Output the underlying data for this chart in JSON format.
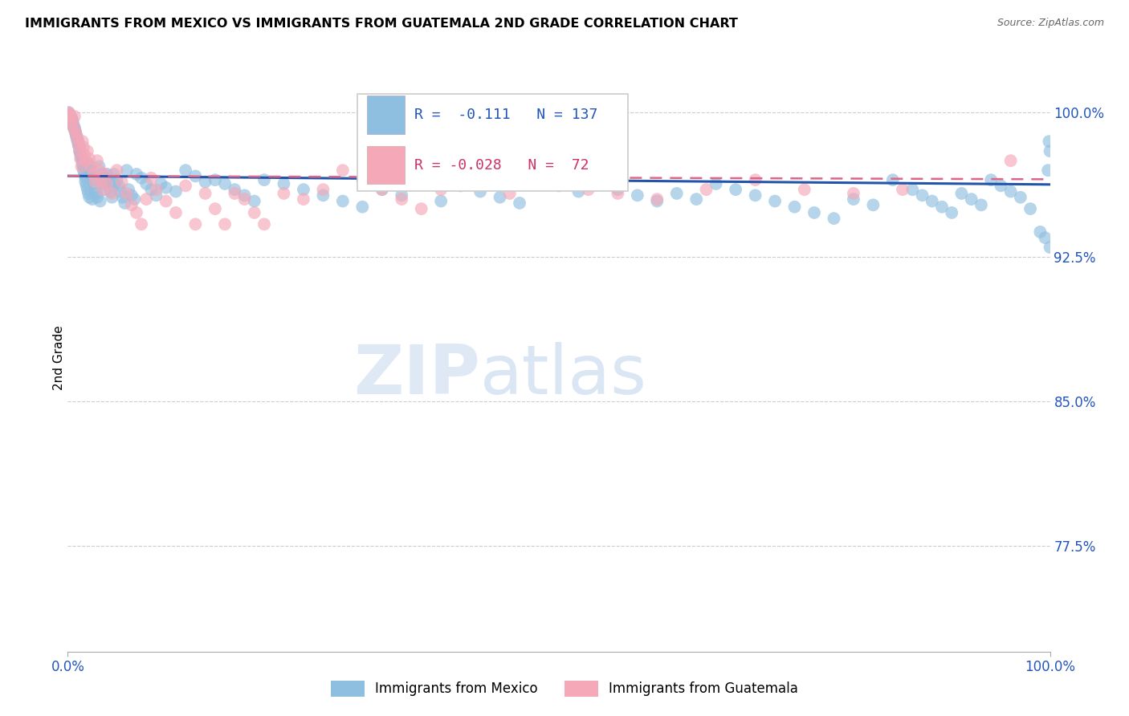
{
  "title": "IMMIGRANTS FROM MEXICO VS IMMIGRANTS FROM GUATEMALA 2ND GRADE CORRELATION CHART",
  "source": "Source: ZipAtlas.com",
  "ylabel": "2nd Grade",
  "y_tick_labels_right": [
    "100.0%",
    "92.5%",
    "85.0%",
    "77.5%"
  ],
  "y_tick_positions_right": [
    1.0,
    0.925,
    0.85,
    0.775
  ],
  "xlim": [
    0.0,
    1.0
  ],
  "ylim": [
    0.72,
    1.025
  ],
  "legend_r_blue": "-0.111",
  "legend_n_blue": "137",
  "legend_r_pink": "-0.028",
  "legend_n_pink": "72",
  "blue_color": "#8fbfe0",
  "pink_color": "#f4a8b8",
  "trendline_blue": "#2255aa",
  "trendline_pink": "#dd6688",
  "watermark_zip": "ZIP",
  "watermark_atlas": "atlas",
  "blue_scatter_x": [
    0.001,
    0.002,
    0.003,
    0.003,
    0.004,
    0.004,
    0.005,
    0.005,
    0.005,
    0.006,
    0.006,
    0.007,
    0.007,
    0.008,
    0.008,
    0.009,
    0.009,
    0.01,
    0.01,
    0.011,
    0.011,
    0.012,
    0.012,
    0.013,
    0.013,
    0.014,
    0.015,
    0.015,
    0.016,
    0.016,
    0.017,
    0.018,
    0.018,
    0.019,
    0.02,
    0.02,
    0.021,
    0.022,
    0.022,
    0.023,
    0.024,
    0.025,
    0.026,
    0.027,
    0.028,
    0.029,
    0.03,
    0.032,
    0.033,
    0.035,
    0.036,
    0.037,
    0.038,
    0.04,
    0.041,
    0.043,
    0.044,
    0.045,
    0.047,
    0.048,
    0.05,
    0.052,
    0.054,
    0.056,
    0.058,
    0.06,
    0.062,
    0.065,
    0.068,
    0.07,
    0.075,
    0.08,
    0.085,
    0.09,
    0.095,
    0.1,
    0.11,
    0.12,
    0.13,
    0.14,
    0.15,
    0.16,
    0.17,
    0.18,
    0.19,
    0.2,
    0.22,
    0.24,
    0.26,
    0.28,
    0.3,
    0.32,
    0.34,
    0.36,
    0.38,
    0.4,
    0.42,
    0.44,
    0.46,
    0.48,
    0.5,
    0.52,
    0.54,
    0.56,
    0.58,
    0.6,
    0.62,
    0.64,
    0.66,
    0.68,
    0.7,
    0.72,
    0.74,
    0.76,
    0.78,
    0.8,
    0.82,
    0.84,
    0.86,
    0.87,
    0.88,
    0.89,
    0.9,
    0.91,
    0.92,
    0.93,
    0.94,
    0.95,
    0.96,
    0.97,
    0.98,
    0.99,
    0.995,
    0.998,
    0.999,
    1.0,
    1.0
  ],
  "blue_scatter_y": [
    1.0,
    0.999,
    0.998,
    0.997,
    0.997,
    0.996,
    0.996,
    0.995,
    0.994,
    0.993,
    0.993,
    0.992,
    0.991,
    0.99,
    0.989,
    0.988,
    0.987,
    0.986,
    0.985,
    0.984,
    0.983,
    0.982,
    0.98,
    0.979,
    0.978,
    0.976,
    0.975,
    0.973,
    0.972,
    0.97,
    0.968,
    0.966,
    0.964,
    0.962,
    0.974,
    0.96,
    0.958,
    0.972,
    0.956,
    0.97,
    0.968,
    0.955,
    0.966,
    0.963,
    0.96,
    0.958,
    0.956,
    0.972,
    0.954,
    0.968,
    0.966,
    0.963,
    0.96,
    0.968,
    0.965,
    0.962,
    0.959,
    0.956,
    0.968,
    0.963,
    0.965,
    0.962,
    0.959,
    0.956,
    0.953,
    0.97,
    0.96,
    0.957,
    0.955,
    0.968,
    0.966,
    0.963,
    0.96,
    0.957,
    0.963,
    0.961,
    0.959,
    0.97,
    0.967,
    0.964,
    0.965,
    0.963,
    0.96,
    0.957,
    0.954,
    0.965,
    0.963,
    0.96,
    0.957,
    0.954,
    0.951,
    0.96,
    0.957,
    0.968,
    0.954,
    0.962,
    0.959,
    0.956,
    0.953,
    0.965,
    0.962,
    0.959,
    0.963,
    0.96,
    0.957,
    0.954,
    0.958,
    0.955,
    0.963,
    0.96,
    0.957,
    0.954,
    0.951,
    0.948,
    0.945,
    0.955,
    0.952,
    0.965,
    0.96,
    0.957,
    0.954,
    0.951,
    0.948,
    0.958,
    0.955,
    0.952,
    0.965,
    0.962,
    0.959,
    0.956,
    0.95,
    0.938,
    0.935,
    0.97,
    0.985,
    0.98,
    0.93
  ],
  "pink_scatter_x": [
    0.001,
    0.002,
    0.003,
    0.004,
    0.005,
    0.006,
    0.007,
    0.008,
    0.009,
    0.01,
    0.011,
    0.012,
    0.013,
    0.014,
    0.015,
    0.016,
    0.017,
    0.018,
    0.02,
    0.022,
    0.024,
    0.026,
    0.028,
    0.03,
    0.032,
    0.034,
    0.036,
    0.038,
    0.04,
    0.045,
    0.05,
    0.055,
    0.06,
    0.065,
    0.07,
    0.075,
    0.08,
    0.085,
    0.09,
    0.1,
    0.11,
    0.12,
    0.13,
    0.14,
    0.15,
    0.16,
    0.17,
    0.18,
    0.19,
    0.2,
    0.22,
    0.24,
    0.26,
    0.28,
    0.3,
    0.32,
    0.34,
    0.36,
    0.38,
    0.4,
    0.42,
    0.45,
    0.48,
    0.53,
    0.56,
    0.6,
    0.65,
    0.7,
    0.75,
    0.8,
    0.85,
    0.96
  ],
  "pink_scatter_y": [
    1.0,
    0.999,
    0.998,
    0.996,
    0.994,
    0.992,
    0.998,
    0.99,
    0.988,
    0.986,
    0.983,
    0.98,
    0.976,
    0.972,
    0.985,
    0.982,
    0.978,
    0.975,
    0.98,
    0.976,
    0.972,
    0.968,
    0.964,
    0.975,
    0.97,
    0.965,
    0.96,
    0.968,
    0.963,
    0.958,
    0.97,
    0.964,
    0.958,
    0.952,
    0.948,
    0.942,
    0.955,
    0.966,
    0.96,
    0.954,
    0.948,
    0.962,
    0.942,
    0.958,
    0.95,
    0.942,
    0.958,
    0.955,
    0.948,
    0.942,
    0.958,
    0.955,
    0.96,
    0.97,
    0.965,
    0.96,
    0.955,
    0.95,
    0.96,
    0.965,
    0.97,
    0.958,
    0.965,
    0.96,
    0.958,
    0.955,
    0.96,
    0.965,
    0.96,
    0.958,
    0.96,
    0.975
  ]
}
